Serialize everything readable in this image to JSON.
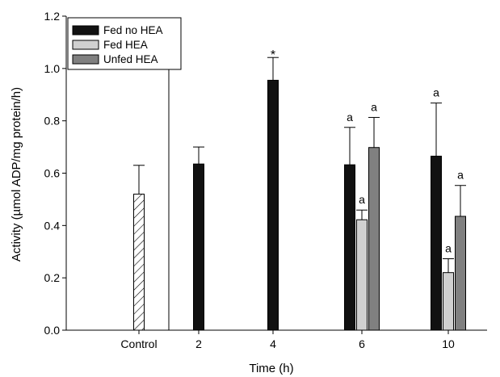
{
  "chart_data": {
    "type": "bar",
    "title": "",
    "xlabel": "Time (h)",
    "ylabel": "Activity (µmol ADP/mg protein/h)",
    "ylim": [
      0,
      1.2
    ],
    "yticks": [
      "0.0",
      "0.2",
      "0.4",
      "0.6",
      "0.8",
      "1.0",
      "1.2"
    ],
    "categories": [
      "Control",
      "2",
      "4",
      "6",
      "10"
    ],
    "legend_position": "top-left",
    "control": {
      "value": 0.52,
      "error": 0.11,
      "pattern": "hatched",
      "color": "#ffffff"
    },
    "series": [
      {
        "name": "Fed no HEA",
        "color": "#111111",
        "values": [
          null,
          0.635,
          0.955,
          0.632,
          0.665
        ],
        "errors": [
          null,
          0.065,
          0.087,
          0.143,
          0.203
        ],
        "annotations": [
          null,
          null,
          "*",
          "a",
          "a"
        ]
      },
      {
        "name": "Fed HEA",
        "color": "#d0d0d0",
        "values": [
          null,
          null,
          null,
          0.422,
          0.22
        ],
        "errors": [
          null,
          null,
          null,
          0.037,
          0.053
        ],
        "annotations": [
          null,
          null,
          null,
          "a",
          "a"
        ]
      },
      {
        "name": "Unfed HEA",
        "color": "#808080",
        "values": [
          null,
          null,
          null,
          0.698,
          0.435
        ],
        "errors": [
          null,
          null,
          null,
          0.115,
          0.118
        ],
        "annotations": [
          null,
          null,
          null,
          "a",
          "a"
        ]
      }
    ]
  }
}
